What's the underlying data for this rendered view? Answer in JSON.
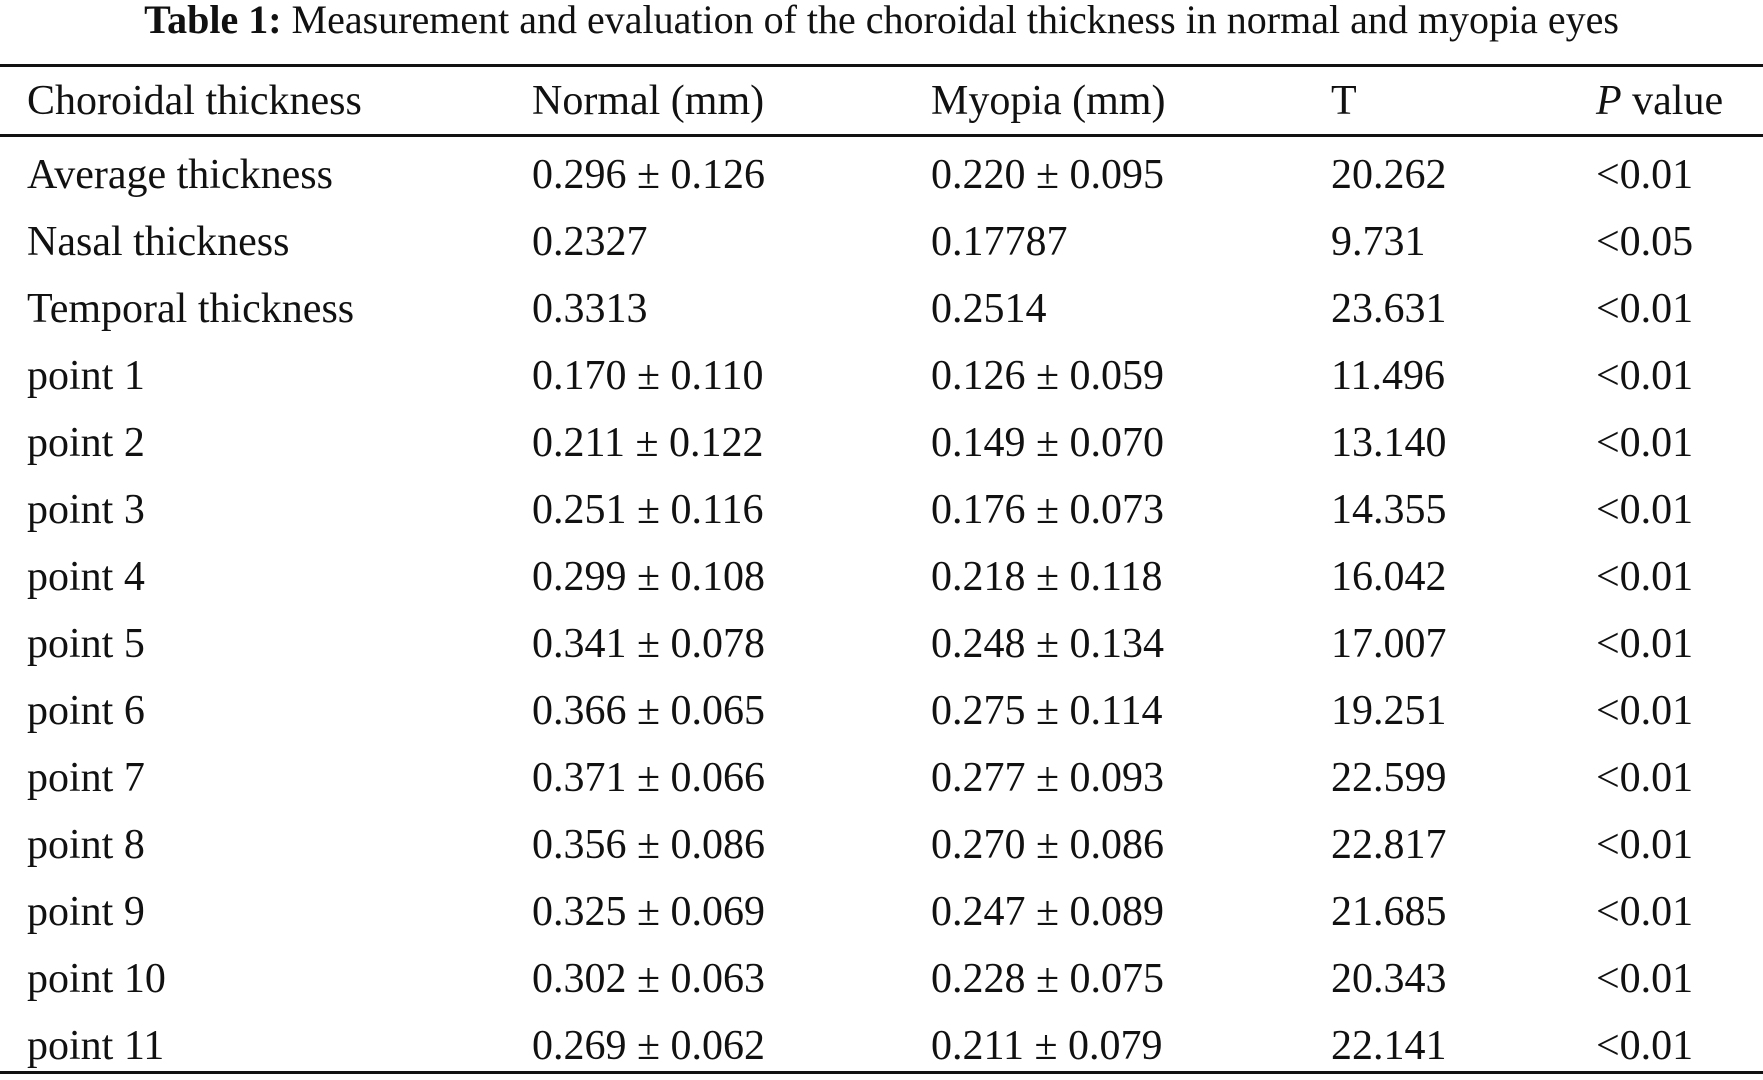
{
  "caption": {
    "label": "Table 1:",
    "text": "Measurement and evaluation of the choroidal thickness in normal and myopia eyes"
  },
  "table": {
    "headers": {
      "col0": "Choroidal thickness",
      "col1": "Normal (mm)",
      "col2": "Myopia (mm)",
      "col3": "T",
      "col4_italic": "P",
      "col4_rest": " value"
    },
    "rows": [
      [
        "Average thickness",
        "0.296 ± 0.126",
        "0.220 ± 0.095",
        "20.262",
        "<0.01"
      ],
      [
        "Nasal thickness",
        "0.2327",
        "0.17787",
        "9.731",
        "<0.05"
      ],
      [
        "Temporal thickness",
        "0.3313",
        "0.2514",
        "23.631",
        "<0.01"
      ],
      [
        "point 1",
        "0.170 ± 0.110",
        "0.126 ± 0.059",
        "11.496",
        "<0.01"
      ],
      [
        "point 2",
        "0.211 ± 0.122",
        "0.149 ± 0.070",
        "13.140",
        "<0.01"
      ],
      [
        "point 3",
        "0.251 ± 0.116",
        "0.176 ± 0.073",
        "14.355",
        "<0.01"
      ],
      [
        "point 4",
        "0.299 ± 0.108",
        "0.218 ± 0.118",
        "16.042",
        "<0.01"
      ],
      [
        "point 5",
        "0.341 ± 0.078",
        "0.248 ± 0.134",
        "17.007",
        "<0.01"
      ],
      [
        "point 6",
        "0.366 ± 0.065",
        "0.275 ± 0.114",
        "19.251",
        "<0.01"
      ],
      [
        "point 7",
        "0.371 ± 0.066",
        "0.277 ± 0.093",
        "22.599",
        "<0.01"
      ],
      [
        "point 8",
        "0.356 ± 0.086",
        "0.270 ± 0.086",
        "22.817",
        "<0.01"
      ],
      [
        "point 9",
        "0.325 ± 0.069",
        "0.247 ± 0.089",
        "21.685",
        "<0.01"
      ],
      [
        "point 10",
        "0.302 ± 0.063",
        "0.228 ± 0.075",
        "20.343",
        "<0.01"
      ],
      [
        "point 11",
        "0.269 ± 0.062",
        "0.211 ± 0.079",
        "22.141",
        "<0.01"
      ]
    ]
  }
}
